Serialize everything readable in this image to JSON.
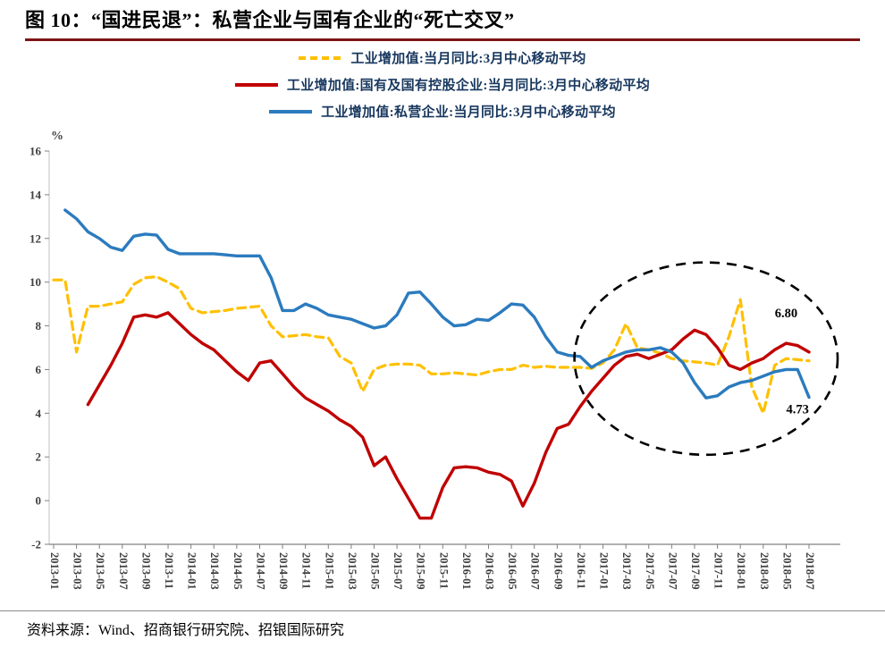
{
  "header": {
    "title": "图 10：“国进民退”：私营企业与国有企业的“死亡交叉”"
  },
  "footer": {
    "source": "资料来源：Wind、招商银行研究院、招银国际研究"
  },
  "colors": {
    "title_rule": "#7E1416",
    "legend_text": "#17375E",
    "axis_text": "#404040",
    "axis_line": "#808080",
    "annotation": "#000000",
    "overall_yellow": "#FFC000",
    "soe_red": "#C00000",
    "private_blue": "#2B7BBE"
  },
  "chart_data": {
    "type": "line",
    "title": "图 10：“国进民退”：私营企业与国有企业的“死亡交叉”",
    "unit_label": "%",
    "ylim": [
      -2,
      16
    ],
    "y_tick_step": 2,
    "x_label_every": 2,
    "grid": false,
    "legend_position": "top-center",
    "categories": [
      "2013-01",
      "2013-02",
      "2013-03",
      "2013-04",
      "2013-05",
      "2013-06",
      "2013-07",
      "2013-08",
      "2013-09",
      "2013-10",
      "2013-11",
      "2013-12",
      "2014-01",
      "2014-02",
      "2014-03",
      "2014-04",
      "2014-05",
      "2014-06",
      "2014-07",
      "2014-08",
      "2014-09",
      "2014-10",
      "2014-11",
      "2014-12",
      "2015-01",
      "2015-02",
      "2015-03",
      "2015-04",
      "2015-05",
      "2015-06",
      "2015-07",
      "2015-08",
      "2015-09",
      "2015-10",
      "2015-11",
      "2015-12",
      "2016-01",
      "2016-02",
      "2016-03",
      "2016-04",
      "2016-05",
      "2016-06",
      "2016-07",
      "2016-08",
      "2016-09",
      "2016-10",
      "2016-11",
      "2016-12",
      "2017-01",
      "2017-02",
      "2017-03",
      "2017-04",
      "2017-05",
      "2017-06",
      "2017-07",
      "2017-08",
      "2017-09",
      "2017-10",
      "2017-11",
      "2017-12",
      "2018-01",
      "2018-02",
      "2018-03",
      "2018-04",
      "2018-05",
      "2018-06",
      "2018-07"
    ],
    "series": [
      {
        "id": "overall",
        "name": "工业增加值:当月同比:3月中心移动平均",
        "color": "#FFC000",
        "style": "dashed",
        "values": [
          10.1,
          10.1,
          6.8,
          8.9,
          8.9,
          9.0,
          9.1,
          9.9,
          10.2,
          10.25,
          10.0,
          9.7,
          8.8,
          8.6,
          8.65,
          8.7,
          8.8,
          8.85,
          8.9,
          8.0,
          7.5,
          7.55,
          7.6,
          7.5,
          7.45,
          6.6,
          6.3,
          5.0,
          6.0,
          6.2,
          6.25,
          6.25,
          6.2,
          5.8,
          5.8,
          5.85,
          5.8,
          5.75,
          5.9,
          6.0,
          6.0,
          6.2,
          6.1,
          6.15,
          6.1,
          6.1,
          6.1,
          6.05,
          6.3,
          6.9,
          8.1,
          7.0,
          6.9,
          6.75,
          6.5,
          6.4,
          6.35,
          6.3,
          6.2,
          7.5,
          9.2,
          5.2,
          4.0,
          6.2,
          6.5,
          6.45,
          6.4
        ]
      },
      {
        "id": "soe",
        "name": "工业增加值:国有及国有控股企业:当月同比:3月中心移动平均",
        "color": "#C00000",
        "style": "solid",
        "values": [
          null,
          null,
          null,
          4.4,
          5.3,
          6.2,
          7.2,
          8.4,
          8.5,
          8.4,
          8.6,
          8.1,
          7.6,
          7.2,
          6.9,
          6.4,
          5.9,
          5.5,
          6.3,
          6.4,
          5.8,
          5.2,
          4.7,
          4.4,
          4.1,
          3.7,
          3.4,
          2.9,
          1.6,
          2.0,
          1.0,
          0.1,
          -0.8,
          -0.8,
          0.6,
          1.5,
          1.55,
          1.5,
          1.3,
          1.2,
          0.9,
          -0.25,
          0.8,
          2.2,
          3.3,
          3.5,
          4.3,
          5.0,
          5.6,
          6.2,
          6.6,
          6.7,
          6.5,
          6.7,
          6.9,
          7.4,
          7.8,
          7.6,
          7.0,
          6.2,
          6.0,
          6.3,
          6.5,
          6.9,
          7.2,
          7.1,
          6.8
        ]
      },
      {
        "id": "private",
        "name": "工业增加值:私营企业:当月同比:3月中心移动平均",
        "color": "#2B7BBE",
        "style": "solid",
        "values": [
          null,
          13.3,
          12.9,
          12.3,
          12.0,
          11.6,
          11.45,
          12.1,
          12.2,
          12.15,
          11.5,
          11.3,
          11.3,
          11.3,
          11.3,
          11.25,
          11.2,
          11.2,
          11.2,
          10.2,
          8.7,
          8.7,
          9.0,
          8.8,
          8.5,
          8.4,
          8.3,
          8.1,
          7.9,
          8.0,
          8.5,
          9.5,
          9.55,
          9.0,
          8.4,
          8.0,
          8.05,
          8.3,
          8.25,
          8.6,
          9.0,
          8.95,
          8.4,
          7.5,
          6.8,
          6.65,
          6.6,
          6.1,
          6.4,
          6.6,
          6.8,
          6.9,
          6.9,
          7.0,
          6.8,
          6.3,
          5.4,
          4.7,
          4.8,
          5.2,
          5.4,
          5.5,
          5.7,
          5.9,
          6.0,
          6.0,
          4.73
        ]
      }
    ],
    "annotations": [
      {
        "text": "6.80",
        "month": "2018-05",
        "value": 8.4
      },
      {
        "text": "4.73",
        "month": "2018-06",
        "value": 4.0
      }
    ],
    "highlight_ellipse": {
      "month": "2017-10",
      "value": 6.5,
      "rx_months": 11.5,
      "ry_units": 4.4,
      "style": "dashed",
      "color": "#000000"
    }
  }
}
